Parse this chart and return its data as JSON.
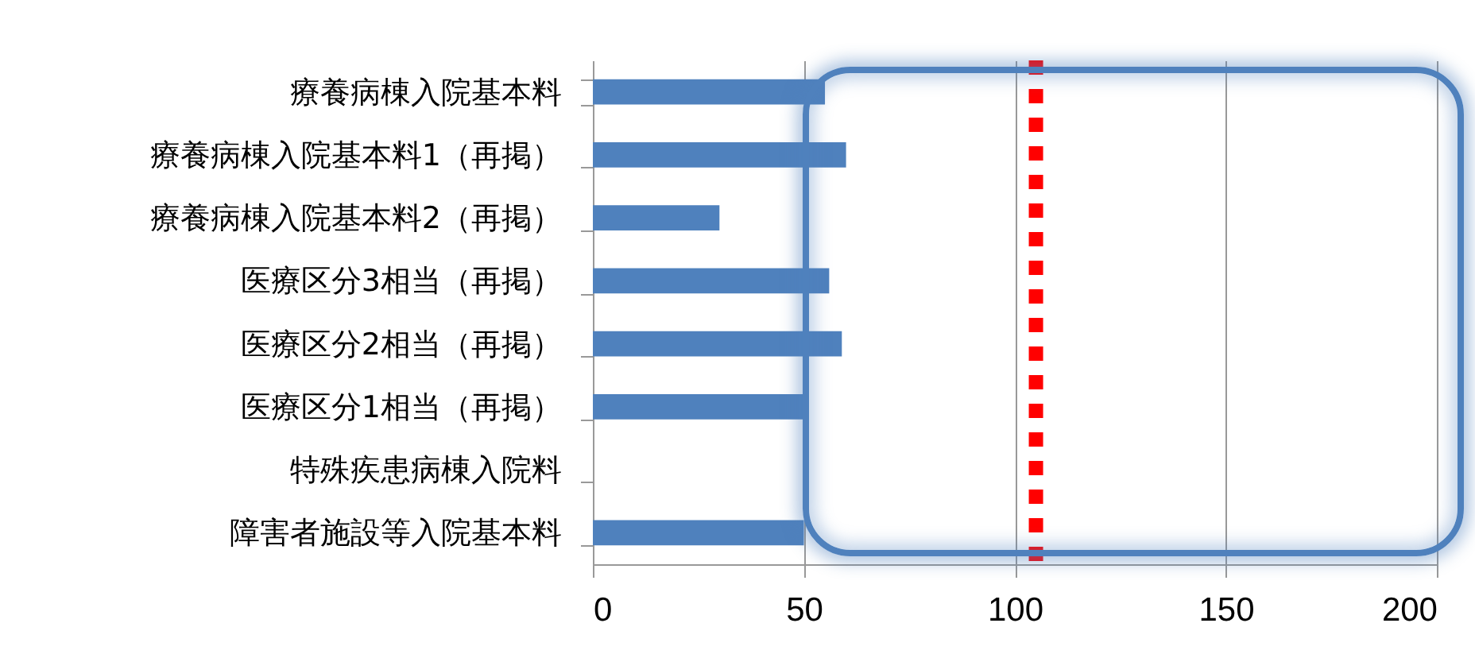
{
  "chart_data": {
    "type": "bar",
    "orientation": "horizontal",
    "categories": [
      "療養病棟入院基本料",
      "療養病棟入院基本料1（再掲）",
      "療養病棟入院基本料2（再掲）",
      "医療区分3相当（再掲）",
      "医療区分2相当（再掲）",
      "医療区分1相当（再掲）",
      "特殊疾患病棟入院料",
      "障害者施設等入院基本料"
    ],
    "series": [
      {
        "color": "#4f81bd",
        "values": [
          55,
          60,
          30,
          56,
          59,
          50,
          null,
          50
        ]
      }
    ],
    "xlim": [
      0,
      200
    ],
    "xticks": [
      0,
      50,
      100,
      150,
      200
    ],
    "grid": "x",
    "ref_lines": [
      {
        "axis": "x",
        "value": 105,
        "color": "#ff0000",
        "line_style": "dotted"
      }
    ]
  }
}
